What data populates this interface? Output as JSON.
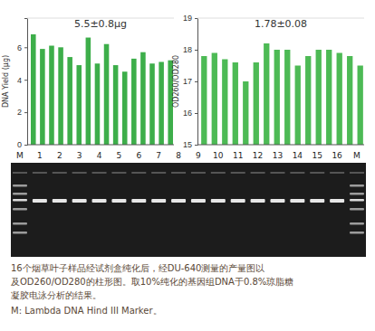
{
  "chart_data": [
    {
      "type": "bar",
      "title": "5.5±0.8μg",
      "y_label": "DNA Yield (μg)",
      "categories": [
        null,
        null,
        null,
        null,
        null,
        null,
        null,
        null,
        null,
        null,
        null,
        null,
        null,
        null,
        null,
        null
      ],
      "values": [
        6.8,
        5.9,
        6.1,
        6.0,
        5.4,
        4.9,
        6.6,
        5.0,
        6.2,
        4.9,
        4.5,
        5.3,
        5.7,
        5.0,
        5.1,
        5.2
      ],
      "color": "#3dae4a",
      "ylim": [
        0,
        7.8
      ],
      "yticks": [
        0,
        2,
        4,
        6
      ],
      "tick_labels": "y"
    },
    {
      "type": "bar",
      "title": "1.78±0.08",
      "y_label": "OD260/OD280",
      "categories": [
        null,
        null,
        null,
        null,
        null,
        null,
        null,
        null,
        null,
        null,
        null,
        null,
        null,
        null,
        null,
        null
      ],
      "values": [
        17.8,
        17.9,
        17.7,
        17.6,
        17.0,
        17.6,
        18.2,
        18.0,
        18.0,
        17.5,
        17.8,
        18.0,
        18.0,
        17.9,
        17.8,
        17.5
      ],
      "color": "#4dba55",
      "ylim": [
        15,
        19
      ],
      "yticks": [
        15,
        16,
        17,
        18,
        19
      ],
      "tick_labels": "y"
    }
  ],
  "gel": {
    "lane_labels": [
      "M",
      "1",
      "2",
      "3",
      "4",
      "5",
      "6",
      "7",
      "8",
      "9",
      "10",
      "11",
      "12",
      "13",
      "14",
      "15",
      "16",
      "M"
    ]
  },
  "caption": [
    "16个烟草叶子样品经试剂盒纯化后，经DU-640测量的产量图以",
    "及OD260/OD280的柱形图。取10%纯化的基因组DNA于0.8%琼脂糖",
    "凝胶电泳分析的结果。",
    "M: Lambda DNA Hind III Marker。"
  ]
}
